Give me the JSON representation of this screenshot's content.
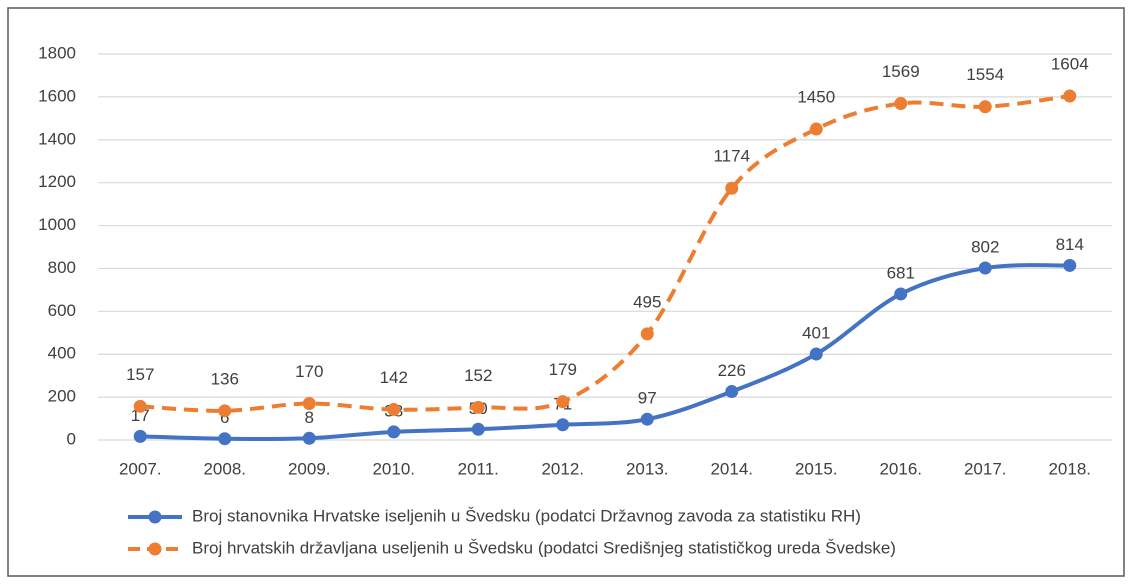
{
  "chart_data": {
    "type": "line",
    "categories": [
      "2007.",
      "2008.",
      "2009.",
      "2010.",
      "2011.",
      "2012.",
      "2013.",
      "2014.",
      "2015.",
      "2016.",
      "2017.",
      "2018."
    ],
    "series": [
      {
        "name": "Broj stanovnika Hrvatske iseljenih u Švedsku (podatci Državnog zavoda za statistiku RH)",
        "color": "#4472c4",
        "line_style": "solid",
        "values": [
          17,
          6,
          8,
          38,
          50,
          71,
          97,
          226,
          401,
          681,
          802,
          814
        ]
      },
      {
        "name": "Broj hrvatskih državljana useljenih u Švedsku (podatci Središnjeg statističkog ureda Švedske)",
        "color": "#ed7d31",
        "line_style": "dashed",
        "values": [
          157,
          136,
          170,
          142,
          152,
          179,
          495,
          1174,
          1450,
          1569,
          1554,
          1604
        ]
      }
    ],
    "ylim": [
      0,
      1800
    ],
    "yticks": [
      0,
      200,
      400,
      600,
      800,
      1000,
      1200,
      1400,
      1600,
      1800
    ],
    "grid": true,
    "smooth": true,
    "legend": "bottom"
  }
}
